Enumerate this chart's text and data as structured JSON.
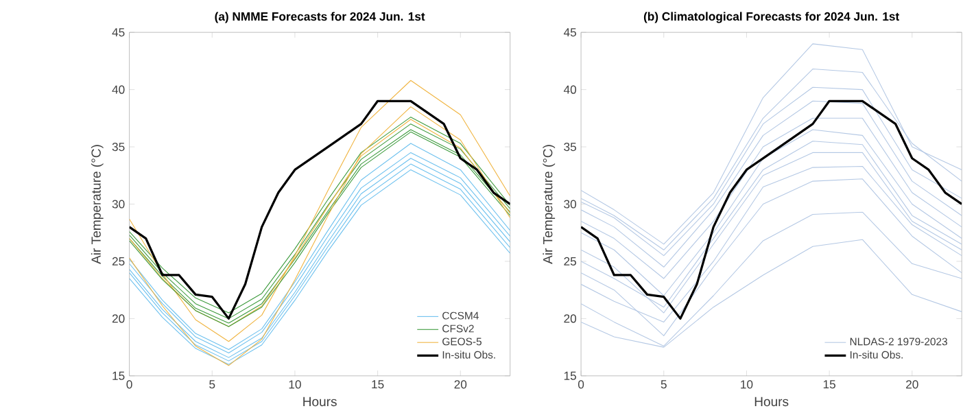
{
  "chart_data": [
    {
      "type": "line",
      "title": "(a) NMME Forecasts for 2024 Jun. 1st",
      "xlabel": "Hours",
      "ylabel": "Air Temperature (°C)",
      "legend": "bottom right",
      "x": [
        0,
        1,
        2,
        3,
        4,
        5,
        6,
        7,
        8,
        9,
        10,
        11,
        12,
        13,
        14,
        15,
        16,
        17,
        18,
        19,
        20,
        21,
        22,
        23
      ],
      "xlim": [
        0,
        23
      ],
      "xticks": [
        0,
        5,
        10,
        15,
        20
      ],
      "ylim": [
        15,
        45
      ],
      "yticks": [
        15,
        20,
        25,
        30,
        35,
        40,
        45
      ],
      "series": [
        {
          "name": "CCSM4",
          "color": "#6cc0ee",
          "x": [
            0,
            2,
            4,
            6,
            8,
            10,
            12,
            14,
            17,
            20,
            23
          ],
          "values": [
            23.5,
            20.1,
            17.4,
            16,
            17.7,
            21.6,
            25.9,
            29.9,
            33,
            30.8,
            25.7
          ]
        },
        {
          "color": "#6cc0ee",
          "x": [
            0,
            2,
            4,
            6,
            8,
            10,
            12,
            14,
            17,
            20,
            23
          ],
          "values": [
            24,
            20.5,
            17.7,
            16.3,
            18,
            22,
            26.3,
            30.4,
            33.5,
            31.3,
            26.2
          ]
        },
        {
          "color": "#6cc0ee",
          "x": [
            0,
            2,
            4,
            6,
            8,
            10,
            12,
            14,
            17,
            20,
            23
          ],
          "values": [
            24.3,
            20.8,
            18,
            16.6,
            18.3,
            22.3,
            26.7,
            30.9,
            34,
            31.8,
            26.7
          ]
        },
        {
          "color": "#6cc0ee",
          "x": [
            0,
            2,
            4,
            6,
            8,
            10,
            12,
            14,
            17,
            20,
            23
          ],
          "values": [
            24.8,
            21.3,
            18.4,
            17,
            18.8,
            22.8,
            27.2,
            31.4,
            34.5,
            32.3,
            27.2
          ]
        },
        {
          "color": "#6cc0ee",
          "x": [
            0,
            2,
            4,
            6,
            8,
            10,
            12,
            14,
            17,
            20,
            23
          ],
          "values": [
            25.2,
            21.6,
            18.7,
            17.3,
            19.1,
            23.2,
            27.7,
            32.1,
            35.3,
            33,
            27.7
          ]
        },
        {
          "name": "CFSv2",
          "color": "#3c9a3c",
          "x": [
            0,
            2,
            4,
            6,
            8,
            10,
            12,
            14,
            17,
            20,
            23
          ],
          "values": [
            26.8,
            23.4,
            20.7,
            19.3,
            21,
            24.9,
            29.2,
            33.2,
            36.3,
            34.1,
            29
          ]
        },
        {
          "color": "#3c9a3c",
          "x": [
            0,
            2,
            4,
            6,
            8,
            10,
            12,
            14,
            17,
            20,
            23
          ],
          "values": [
            27,
            23.7,
            20.9,
            19.6,
            21.3,
            25.2,
            29.4,
            33.5,
            36.5,
            34.3,
            29.3
          ]
        },
        {
          "color": "#3c9a3c",
          "x": [
            0,
            2,
            4,
            6,
            8,
            10,
            12,
            14,
            17,
            20,
            23
          ],
          "values": [
            27.3,
            24,
            21.3,
            20,
            21.7,
            25.6,
            29.9,
            33.9,
            37,
            34.8,
            29.6
          ]
        },
        {
          "color": "#3c9a3c",
          "x": [
            0,
            2,
            4,
            6,
            8,
            10,
            12,
            14,
            17,
            20,
            23
          ],
          "values": [
            27.6,
            24.4,
            21.8,
            20.5,
            22.2,
            26.1,
            30.4,
            34.5,
            37.6,
            35.3,
            29.9
          ]
        },
        {
          "name": "GEOS-5",
          "color": "#f0b440",
          "x": [
            0,
            2,
            4,
            6,
            8,
            10,
            12,
            14,
            17,
            20,
            23
          ],
          "values": [
            25.3,
            21.1,
            17.6,
            15.9,
            18.2,
            23.4,
            29,
            34.4,
            38.5,
            35.6,
            28.8
          ]
        },
        {
          "color": "#f0b440",
          "x": [
            0,
            2,
            4,
            6,
            8,
            10,
            12,
            14,
            17,
            20,
            23
          ],
          "values": [
            28.7,
            23.9,
            19.9,
            18,
            20.3,
            25.5,
            31.2,
            36.7,
            40.8,
            37.8,
            30.7
          ]
        },
        {
          "color": "#f0b440",
          "x": [
            0,
            2,
            4,
            6,
            8,
            10,
            12,
            14,
            17,
            20,
            23
          ],
          "values": [
            27,
            23.5,
            20.7,
            19.3,
            21.1,
            25.3,
            29.8,
            34.2,
            37.4,
            34.9,
            29.2
          ]
        },
        {
          "name": "In-situ Obs.",
          "color": "#000000",
          "values": [
            28,
            27,
            23.8,
            23.8,
            22.1,
            21.9,
            20,
            23,
            28,
            31,
            33,
            34,
            35,
            36,
            37,
            39,
            39,
            39,
            38,
            37,
            34,
            33,
            31,
            30
          ]
        }
      ]
    },
    {
      "type": "line",
      "title": "(b) Climatological Forecasts for 2024 Jun. 1st",
      "xlabel": "Hours",
      "ylabel": "Air Temperature (°C)",
      "legend": "bottom right",
      "x": [
        0,
        1,
        2,
        3,
        4,
        5,
        6,
        7,
        8,
        9,
        10,
        11,
        12,
        13,
        14,
        15,
        16,
        17,
        18,
        19,
        20,
        21,
        22,
        23
      ],
      "xlim": [
        0,
        23
      ],
      "xticks": [
        0,
        5,
        10,
        15,
        20
      ],
      "ylim": [
        15,
        45
      ],
      "yticks": [
        15,
        20,
        25,
        30,
        35,
        40,
        45
      ],
      "series": [
        {
          "name": "NLDAS-2 1979-2023",
          "color": "#b4c8e4",
          "x": [
            0,
            2,
            5,
            8,
            11,
            14,
            17,
            20,
            23
          ],
          "values": [
            31.2,
            29.5,
            26.5,
            31,
            39.3,
            44,
            43.5,
            35,
            33
          ]
        },
        {
          "color": "#b4c8e4",
          "x": [
            0,
            2,
            5,
            8,
            11,
            14,
            17,
            20,
            23
          ],
          "values": [
            19.7,
            18.4,
            17.5,
            21,
            23.8,
            26.3,
            26.9,
            22.1,
            20.6
          ]
        },
        {
          "color": "#b4c8e4",
          "x": [
            0,
            2,
            5,
            8,
            11,
            14,
            17,
            20,
            23
          ],
          "values": [
            21.3,
            19.7,
            17.6,
            22,
            26.8,
            29.1,
            29.3,
            24.8,
            23.5
          ]
        },
        {
          "color": "#b4c8e4",
          "x": [
            0,
            2,
            5,
            8,
            11,
            14,
            17,
            20,
            23
          ],
          "values": [
            24,
            22.5,
            18.5,
            24.5,
            30,
            32,
            32.2,
            27.2,
            24
          ]
        },
        {
          "color": "#b4c8e4",
          "x": [
            0,
            2,
            5,
            8,
            11,
            14,
            17,
            20,
            23
          ],
          "values": [
            26,
            24.5,
            20.5,
            26.5,
            32.5,
            34.5,
            34.5,
            28.5,
            26
          ]
        },
        {
          "color": "#b4c8e4",
          "x": [
            0,
            2,
            5,
            8,
            11,
            14,
            17,
            20,
            23
          ],
          "values": [
            27.5,
            26,
            22,
            27.5,
            34,
            36.5,
            36,
            30,
            27
          ]
        },
        {
          "color": "#b4c8e4",
          "x": [
            0,
            2,
            5,
            8,
            11,
            14,
            17,
            20,
            23
          ],
          "values": [
            28.5,
            27,
            23.5,
            28.5,
            35,
            37.5,
            37.5,
            31,
            28
          ]
        },
        {
          "color": "#b4c8e4",
          "x": [
            0,
            2,
            5,
            8,
            11,
            14,
            17,
            20,
            23
          ],
          "values": [
            29.5,
            28,
            24.5,
            29.5,
            36,
            39,
            38.8,
            32,
            29
          ]
        },
        {
          "color": "#b4c8e4",
          "x": [
            0,
            2,
            5,
            8,
            11,
            14,
            17,
            20,
            23
          ],
          "values": [
            30.2,
            28.8,
            25.5,
            30,
            37,
            40.2,
            40,
            33,
            30.5
          ]
        },
        {
          "color": "#b4c8e4",
          "x": [
            0,
            2,
            5,
            8,
            11,
            14,
            17,
            20,
            23
          ],
          "values": [
            30.5,
            29,
            26,
            30.5,
            37.5,
            41.8,
            41.5,
            35.3,
            32
          ]
        },
        {
          "color": "#b4c8e4",
          "x": [
            0,
            2,
            5,
            8,
            11,
            14,
            17,
            20,
            23
          ],
          "values": [
            25,
            23.5,
            21,
            27,
            33,
            35.5,
            35.2,
            29,
            26.5
          ]
        },
        {
          "color": "#b4c8e4",
          "x": [
            0,
            2,
            5,
            8,
            11,
            14,
            17,
            20,
            23
          ],
          "values": [
            23,
            21.5,
            19.7,
            25,
            31.5,
            33.2,
            33.3,
            28.2,
            25.5
          ]
        },
        {
          "name": "In-situ Obs.",
          "color": "#000000",
          "values": [
            28,
            27,
            23.8,
            23.8,
            22.1,
            21.9,
            20,
            23,
            28,
            31,
            33,
            34,
            35,
            36,
            37,
            39,
            39,
            39,
            38,
            37,
            34,
            33,
            31,
            30
          ]
        }
      ]
    }
  ]
}
